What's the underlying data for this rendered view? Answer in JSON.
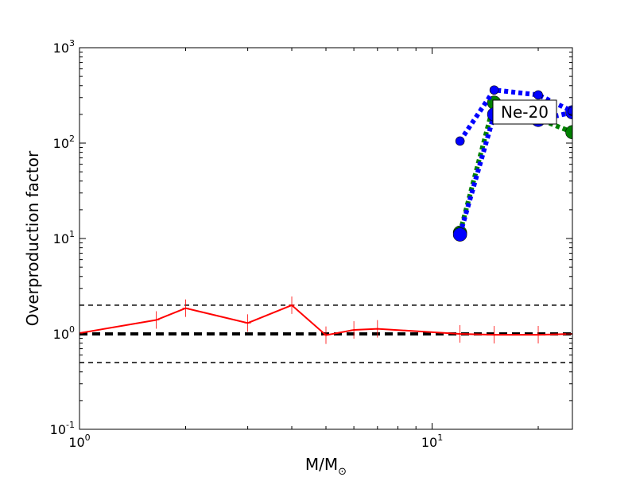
{
  "chart_data": {
    "type": "line",
    "xscale": "log",
    "yscale": "log",
    "xlim": [
      1,
      25
    ],
    "ylim": [
      0.1,
      1000
    ],
    "xlabel": "M/M",
    "xlabel_sub": "⊙",
    "ylabel": "Overproduction factor",
    "x_ticks": [
      {
        "value": 1,
        "base": "10",
        "exp": "0"
      },
      {
        "value": 10,
        "base": "10",
        "exp": "1"
      }
    ],
    "y_ticks": [
      {
        "value": 0.1,
        "base": "10",
        "exp": "-1"
      },
      {
        "value": 1,
        "base": "10",
        "exp": "0"
      },
      {
        "value": 10,
        "base": "10",
        "exp": "1"
      },
      {
        "value": 100,
        "base": "10",
        "exp": "2"
      },
      {
        "value": 1000,
        "base": "10",
        "exp": "3"
      }
    ],
    "annotation": "Ne-20",
    "hlines": [
      {
        "y": 2.0,
        "style": "dashed",
        "color": "#000000",
        "width": 1.5
      },
      {
        "y": 1.0,
        "style": "dashed",
        "color": "#000000",
        "width": 4
      },
      {
        "y": 0.5,
        "style": "dashed",
        "color": "#000000",
        "width": 1.5
      }
    ],
    "series": [
      {
        "color": "#ff0000",
        "style": "solid",
        "marker": "plus",
        "x": [
          1.0,
          1.65,
          2.0,
          3.0,
          4.0,
          5.0,
          6.0,
          7.0,
          12.0,
          15.0,
          20.0,
          25.0
        ],
        "y": [
          1.02,
          1.4,
          1.86,
          1.3,
          2.0,
          0.97,
          1.1,
          1.13,
          1.0,
          0.98,
          0.98,
          1.0
        ]
      },
      {
        "color": "#008000",
        "style": "dotted",
        "marker": "circle",
        "x": [
          12.0,
          15.0,
          20.0,
          25.0
        ],
        "y": [
          11.5,
          265.0,
          180.0,
          130.0
        ]
      },
      {
        "color": "#0000ff",
        "style": "dotted",
        "marker": "circle",
        "x": [
          12.0,
          15.0,
          20.0,
          25.0
        ],
        "y": [
          11.0,
          200.0,
          175.0,
          210.0
        ]
      },
      {
        "color": "#0000ff",
        "style": "dotted",
        "marker": "circle",
        "x": [
          12.0,
          15.0,
          20.0,
          25.0
        ],
        "y": [
          105.0,
          360.0,
          320.0,
          215.0
        ]
      }
    ]
  }
}
